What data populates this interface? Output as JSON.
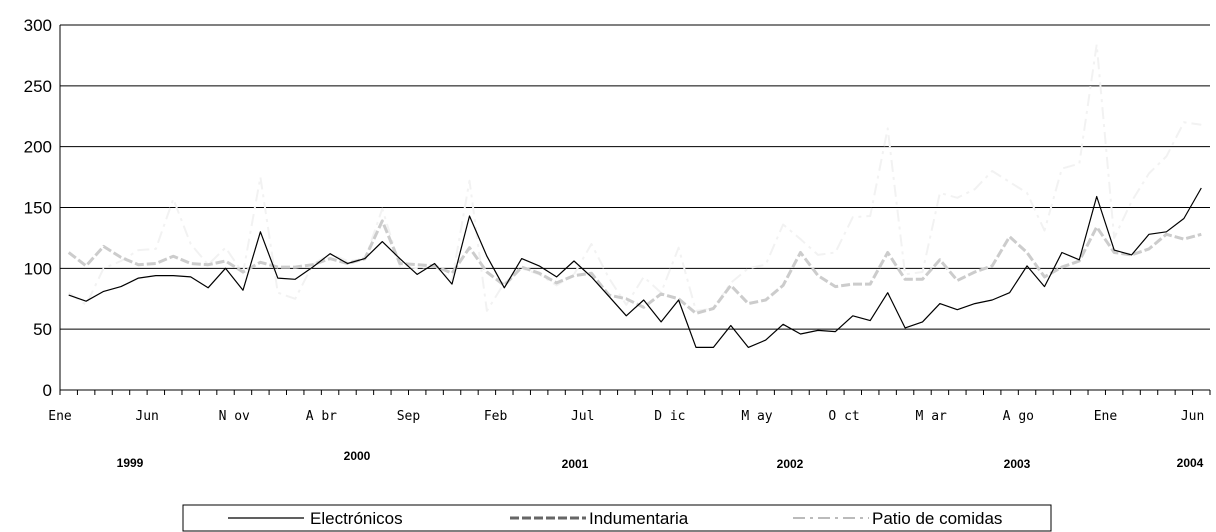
{
  "chart_data": {
    "type": "line",
    "ylim": [
      0,
      300
    ],
    "yticks": [
      "0",
      "50",
      "100",
      "150",
      "200",
      "250",
      "300"
    ],
    "x_tick_labels": [
      "Ene",
      "Jun",
      "N ov",
      "A br",
      "Sep",
      "Feb",
      "Jul",
      "D ic",
      "M ay",
      "O ct",
      "M ar",
      "A go",
      "Ene",
      "Jun"
    ],
    "years": [
      "1999",
      "2000",
      "2001",
      "2002",
      "2003",
      "2004"
    ],
    "grid": "horizontal",
    "legend_position": "bottom",
    "series": [
      {
        "name": "Electrónicos",
        "color": "#000000",
        "style": "solid",
        "values": [
          78,
          73,
          81,
          85,
          92,
          94,
          94,
          93,
          84,
          100,
          82,
          130,
          92,
          91,
          101,
          112,
          104,
          108,
          122,
          108,
          95,
          104,
          87,
          143,
          110,
          84,
          108,
          102,
          93,
          106,
          93,
          77,
          61,
          74,
          56,
          74,
          35,
          35,
          53,
          35,
          41,
          54,
          46,
          49,
          48,
          61,
          57,
          80,
          51,
          56,
          71,
          66,
          71,
          74,
          80,
          102,
          85,
          113,
          107,
          159,
          115,
          111,
          128,
          130,
          141,
          166
        ]
      },
      {
        "name": "Indumentaria",
        "color": "#cccccc",
        "style": "dashed-thick",
        "values": [
          113,
          102,
          118,
          109,
          103,
          104,
          110,
          104,
          103,
          106,
          97,
          105,
          101,
          101,
          103,
          108,
          104,
          108,
          139,
          104,
          103,
          102,
          96,
          117,
          97,
          86,
          101,
          96,
          88,
          94,
          96,
          78,
          75,
          68,
          79,
          75,
          63,
          67,
          86,
          71,
          74,
          86,
          113,
          94,
          85,
          87,
          87,
          113,
          91,
          91,
          107,
          90,
          97,
          102,
          126,
          113,
          93,
          101,
          106,
          134,
          113,
          111,
          116,
          128,
          124,
          128
        ]
      },
      {
        "name": "Patio de comidas",
        "color": "#f2f2f2",
        "style": "dashdot",
        "values": [
          80,
          70,
          100,
          106,
          115,
          116,
          157,
          120,
          103,
          117,
          96,
          175,
          80,
          75,
          103,
          112,
          106,
          107,
          149,
          102,
          100,
          102,
          90,
          172,
          65,
          88,
          100,
          95,
          86,
          95,
          120,
          92,
          70,
          93,
          80,
          117,
          65,
          67,
          88,
          100,
          103,
          136,
          124,
          111,
          113,
          142,
          143,
          215,
          95,
          97,
          162,
          158,
          165,
          180,
          171,
          162,
          131,
          182,
          186,
          284,
          125,
          155,
          178,
          192,
          220,
          218
        ]
      }
    ]
  }
}
